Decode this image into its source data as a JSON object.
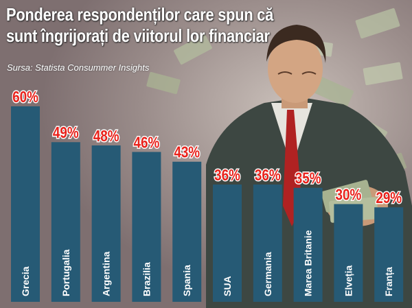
{
  "header": {
    "title_line1": "Ponderea respondenților care spun că",
    "title_line2": "sunt îngrijorați de viitorul lor financiar",
    "source": "Sursa: Statista Consummer Insights"
  },
  "colors": {
    "bar": "#265a75",
    "value_label": "#e8221b",
    "label_text": "#ffffff",
    "background": "#8a7a7a"
  },
  "chart_data": {
    "type": "bar",
    "orientation": "vertical",
    "categories": [
      "Grecia",
      "Portugalia",
      "Argentina",
      "Brazilia",
      "Spania",
      "SUA",
      "Germania",
      "Marea Britanie",
      "Elveția",
      "Franța"
    ],
    "values": [
      60,
      49,
      48,
      46,
      43,
      36,
      36,
      35,
      30,
      29
    ],
    "value_labels": [
      "60%",
      "49%",
      "48%",
      "46%",
      "43%",
      "36%",
      "36%",
      "35%",
      "30%",
      "29%"
    ],
    "unit": "%",
    "ylim": [
      0,
      60
    ],
    "grid": false,
    "legend": "none"
  }
}
